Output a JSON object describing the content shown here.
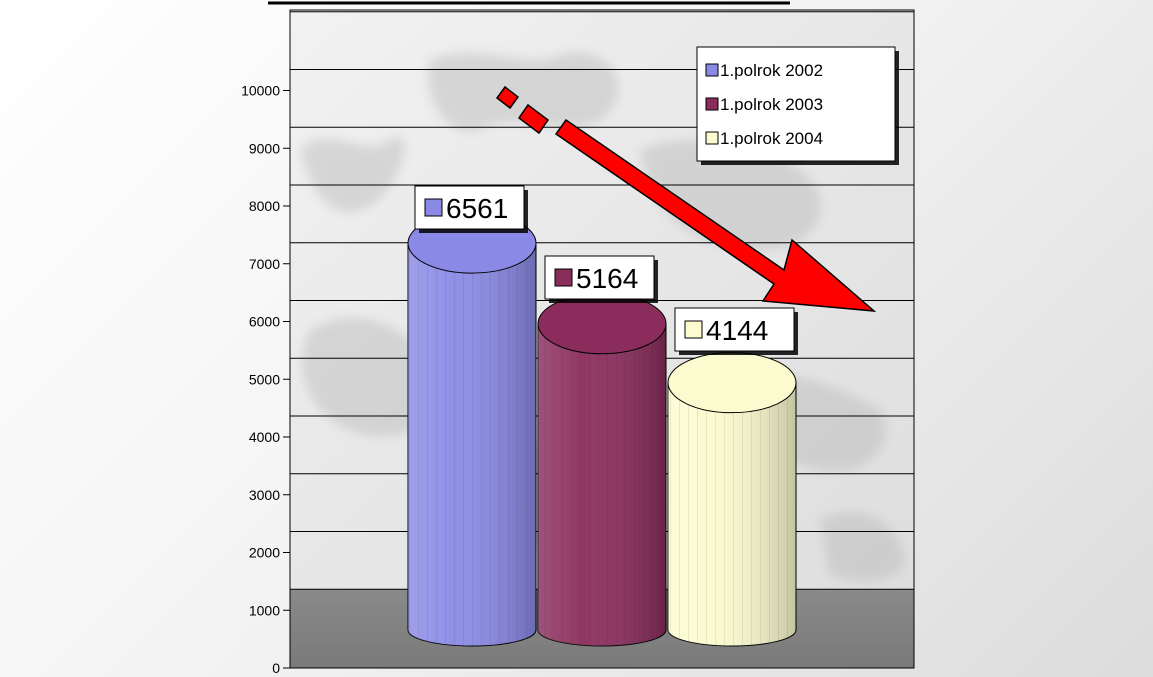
{
  "chart_data": {
    "type": "bar",
    "style": "3d-cylinder",
    "categories": [
      ""
    ],
    "series": [
      {
        "name": "1.polrok 2002",
        "value": 6561,
        "color": "#8a8ae6"
      },
      {
        "name": "1.polrok 2003",
        "value": 5164,
        "color": "#8a2d5c"
      },
      {
        "name": "1.polrok 2004",
        "value": 4144,
        "color": "#fbfbcf"
      }
    ],
    "y_ticks": [
      0,
      1000,
      2000,
      3000,
      4000,
      5000,
      6000,
      7000,
      8000,
      9000,
      10000
    ],
    "ylim": [
      0,
      11000
    ],
    "grid": true,
    "legend_position": "top-right",
    "annotation": "red downward trend arrow"
  }
}
